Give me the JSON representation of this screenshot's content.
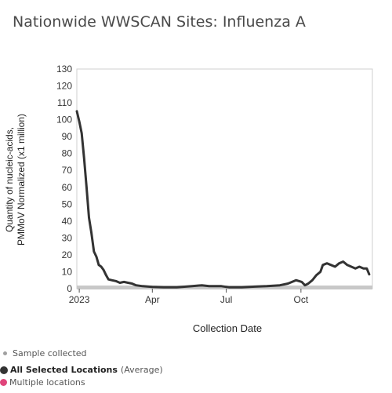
{
  "title": "Nationwide WWSCAN Sites: Influenza A",
  "legend": {
    "sample_collected": "Sample collected",
    "all_selected_bold": "All Selected Locations",
    "all_selected_suffix": "(Average)",
    "multiple_locations": "Multiple locations"
  },
  "colors": {
    "line": "#333333",
    "sample_band": "#c8c8c8",
    "multiple_locations": "#e0457b"
  },
  "chart_data": {
    "type": "line",
    "title": "Nationwide WWSCAN Sites: Influenza A",
    "xlabel": "Collection Date",
    "ylabel_lines": [
      "Quantity of nucleic-acids,",
      "PMMoV Normalized (x1 million)"
    ],
    "ylim": [
      0,
      130
    ],
    "yticks": [
      0,
      10,
      20,
      30,
      40,
      50,
      60,
      70,
      80,
      90,
      100,
      110,
      120,
      130
    ],
    "xlim": [
      "2022-12-29",
      "2023-12-28"
    ],
    "xticks": [
      {
        "date": "2023-01-01",
        "label": "2023"
      },
      {
        "date": "2023-04-01",
        "label": "Apr"
      },
      {
        "date": "2023-07-01",
        "label": "Jul"
      },
      {
        "date": "2023-10-01",
        "label": "Oct"
      }
    ],
    "grid": false,
    "series": [
      {
        "name": "All Selected Locations",
        "points": [
          [
            "2022-12-29",
            105
          ],
          [
            "2023-01-01",
            99
          ],
          [
            "2023-01-04",
            92
          ],
          [
            "2023-01-07",
            77
          ],
          [
            "2023-01-10",
            60
          ],
          [
            "2023-01-13",
            42
          ],
          [
            "2023-01-16",
            33
          ],
          [
            "2023-01-19",
            22
          ],
          [
            "2023-01-22",
            19
          ],
          [
            "2023-01-25",
            14
          ],
          [
            "2023-01-28",
            13
          ],
          [
            "2023-01-31",
            11
          ],
          [
            "2023-02-03",
            8
          ],
          [
            "2023-02-06",
            5.5
          ],
          [
            "2023-02-10",
            5
          ],
          [
            "2023-02-15",
            4.5
          ],
          [
            "2023-02-20",
            3.5
          ],
          [
            "2023-02-25",
            4
          ],
          [
            "2023-03-02",
            3.5
          ],
          [
            "2023-03-07",
            3
          ],
          [
            "2023-03-12",
            2
          ],
          [
            "2023-03-20",
            1.5
          ],
          [
            "2023-04-01",
            1
          ],
          [
            "2023-04-15",
            0.8
          ],
          [
            "2023-05-01",
            0.8
          ],
          [
            "2023-05-20",
            1.5
          ],
          [
            "2023-06-01",
            2
          ],
          [
            "2023-06-10",
            1.5
          ],
          [
            "2023-06-25",
            1.5
          ],
          [
            "2023-07-05",
            0.8
          ],
          [
            "2023-07-20",
            0.8
          ],
          [
            "2023-08-05",
            1.2
          ],
          [
            "2023-08-20",
            1.5
          ],
          [
            "2023-09-05",
            2
          ],
          [
            "2023-09-15",
            3
          ],
          [
            "2023-09-25",
            5
          ],
          [
            "2023-10-02",
            4
          ],
          [
            "2023-10-06",
            2
          ],
          [
            "2023-10-10",
            3
          ],
          [
            "2023-10-15",
            5
          ],
          [
            "2023-10-20",
            8
          ],
          [
            "2023-10-25",
            10
          ],
          [
            "2023-10-28",
            14
          ],
          [
            "2023-11-02",
            15
          ],
          [
            "2023-11-07",
            14
          ],
          [
            "2023-11-12",
            13
          ],
          [
            "2023-11-17",
            15
          ],
          [
            "2023-11-22",
            16
          ],
          [
            "2023-11-27",
            14
          ],
          [
            "2023-12-02",
            13
          ],
          [
            "2023-12-07",
            12
          ],
          [
            "2023-12-12",
            13
          ],
          [
            "2023-12-17",
            12
          ],
          [
            "2023-12-21",
            12
          ],
          [
            "2023-12-24",
            8.5
          ]
        ]
      }
    ],
    "sample_collected": {
      "range": [
        "2022-12-29",
        "2023-12-28"
      ],
      "y": 0
    }
  }
}
